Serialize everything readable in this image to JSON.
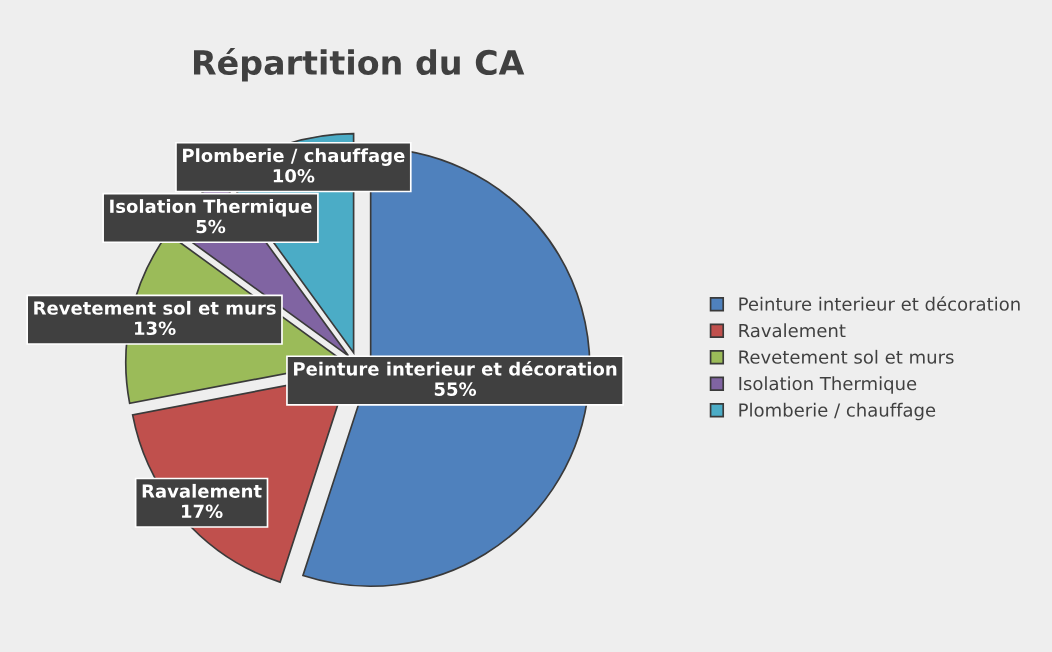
{
  "chart_data": {
    "type": "pie",
    "title": "Répartition du CA",
    "categories": [
      "Peinture interieur et décoration",
      "Ravalement",
      "Revetement sol et murs",
      "Isolation Thermique",
      "Plomberie / chauffage"
    ],
    "values": [
      55,
      17,
      13,
      5,
      10
    ],
    "colors": [
      "#4f81bd",
      "#c0504d",
      "#9bbb59",
      "#8064a2",
      "#4bacc6"
    ],
    "value_labels": [
      "55%",
      "17%",
      "13%",
      "5%",
      "10%"
    ],
    "legend": "right"
  }
}
